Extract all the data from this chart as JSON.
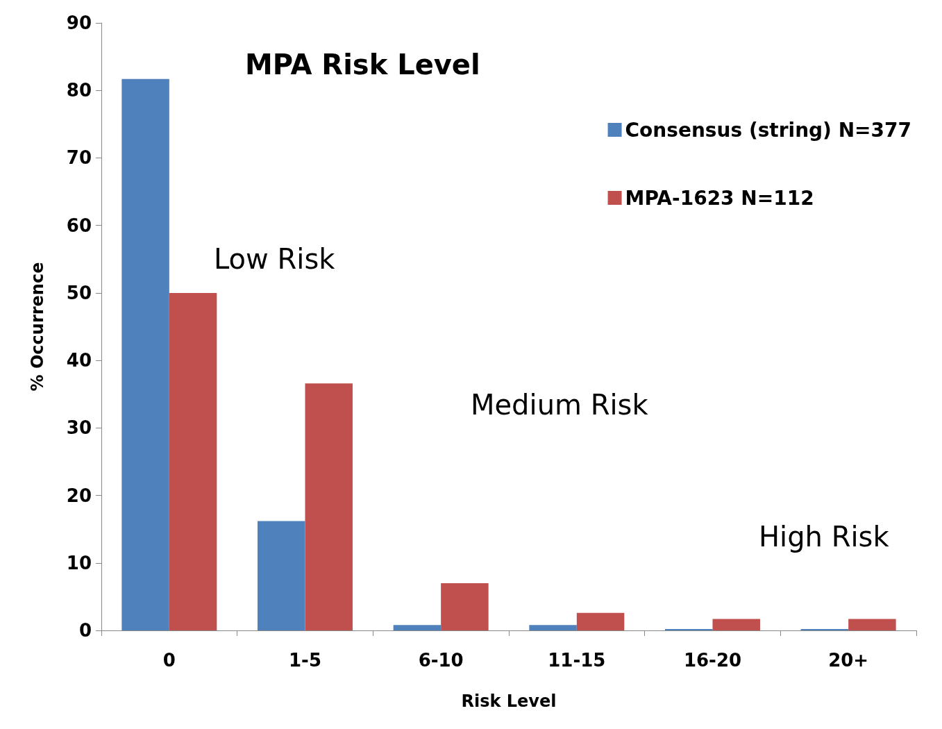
{
  "chart_data": {
    "type": "bar",
    "title": "MPA Risk Level",
    "xlabel": "Risk Level",
    "ylabel": "% Occurrence",
    "categories": [
      "0",
      "1-5",
      "6-10",
      "11-15",
      "16-20",
      "20+"
    ],
    "series": [
      {
        "name": "Consensus (string) N=377",
        "color": "#4f81bd",
        "values": [
          81.7,
          16.2,
          0.8,
          0.8,
          0.2,
          0.2
        ]
      },
      {
        "name": "MPA-1623 N=112",
        "color": "#c0504d",
        "values": [
          50,
          36.6,
          7.0,
          2.6,
          1.7,
          1.7
        ]
      }
    ],
    "ylim": [
      0,
      90
    ],
    "yticks": [
      0,
      10,
      20,
      30,
      40,
      50,
      60,
      70,
      80,
      90
    ],
    "grid": false,
    "legend": "top right",
    "annotations": [
      "Low Risk",
      "Medium Risk",
      "High Risk"
    ]
  }
}
